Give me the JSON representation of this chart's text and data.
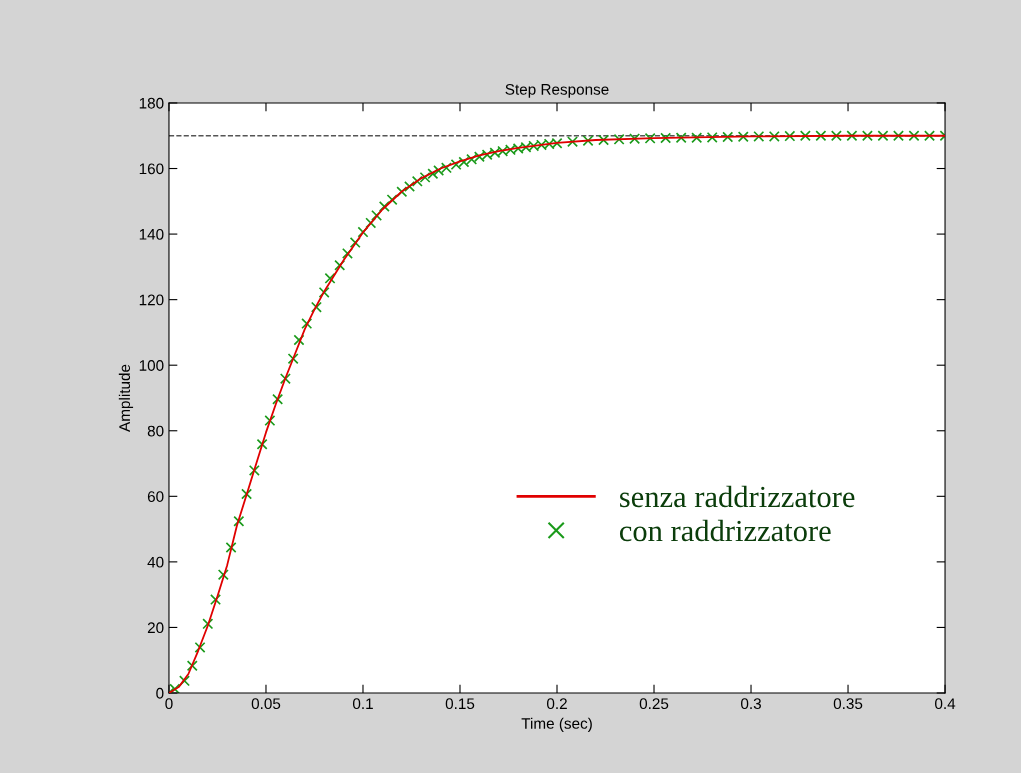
{
  "chart_data": {
    "type": "line",
    "title": "Step Response",
    "xlabel": "Time (sec)",
    "ylabel": "Amplitude",
    "xlim": [
      0,
      0.4
    ],
    "xticks": [
      0,
      0.05,
      0.1,
      0.15,
      0.2,
      0.25,
      0.3,
      0.35,
      0.4
    ],
    "ylim": [
      0,
      180
    ],
    "yticks": [
      0,
      20,
      40,
      60,
      80,
      100,
      120,
      140,
      160,
      180
    ],
    "grid": false,
    "legend": "right",
    "ref_lines": [
      {
        "axis": "y",
        "value": 170,
        "color": "#555555",
        "line_style": "dashed"
      }
    ],
    "series": [
      {
        "name": "senza raddrizzatore",
        "color": "#e00000",
        "marker": "none",
        "line_style": "solid",
        "x": [
          0,
          0.005,
          0.01,
          0.015,
          0.02,
          0.025,
          0.03,
          0.035,
          0.04,
          0.045,
          0.05,
          0.055,
          0.06,
          0.065,
          0.07,
          0.075,
          0.08,
          0.09,
          0.1,
          0.11,
          0.12,
          0.13,
          0.14,
          0.15,
          0.16,
          0.17,
          0.18,
          0.2,
          0.22,
          0.25,
          0.3,
          0.35,
          0.4
        ],
        "values": [
          0,
          1.8,
          5.8,
          12.8,
          20.5,
          29.5,
          39,
          51,
          60.5,
          70,
          79.5,
          88,
          96,
          103.5,
          111,
          117,
          122.5,
          132,
          140.5,
          147.5,
          153,
          157,
          160,
          162.2,
          164,
          165.3,
          166.3,
          167.8,
          168.7,
          169.3,
          169.8,
          170,
          170
        ]
      },
      {
        "name": "con raddrizzatore",
        "type": "scatter",
        "color": "#1a9a1a",
        "marker": "cross",
        "x": [
          0,
          0.003,
          0.008,
          0.012,
          0.016,
          0.02,
          0.024,
          0.028,
          0.032,
          0.036,
          0.04,
          0.044,
          0.048,
          0.052,
          0.056,
          0.06,
          0.064,
          0.067,
          0.071,
          0.076,
          0.08,
          0.083,
          0.088,
          0.092,
          0.096,
          0.1,
          0.104,
          0.107,
          0.111,
          0.115,
          0.12,
          0.124,
          0.128,
          0.132,
          0.136,
          0.139,
          0.143,
          0.148,
          0.152,
          0.156,
          0.16,
          0.164,
          0.168,
          0.172,
          0.176,
          0.18,
          0.184,
          0.188,
          0.192,
          0.196,
          0.2,
          0.208,
          0.216,
          0.224,
          0.232,
          0.24,
          0.248,
          0.256,
          0.264,
          0.272,
          0.28,
          0.288,
          0.296,
          0.304,
          0.312,
          0.32,
          0.328,
          0.336,
          0.344,
          0.352,
          0.36,
          0.368,
          0.376,
          0.384,
          0.392,
          0.4
        ],
        "values": [
          0,
          1.2,
          3.7,
          8.3,
          13.9,
          21.1,
          28.5,
          36.1,
          44.4,
          52.4,
          60.7,
          67.9,
          75.9,
          83.1,
          89.6,
          95.9,
          102,
          107.7,
          112.7,
          117.7,
          122.2,
          126.5,
          130.5,
          134.1,
          137.4,
          140.6,
          143.4,
          145.7,
          148.4,
          150.5,
          152.9,
          154.5,
          156.1,
          157.3,
          158.4,
          159.4,
          160.2,
          161.2,
          162,
          162.8,
          163.6,
          164.2,
          164.8,
          165.3,
          165.7,
          166.1,
          166.5,
          166.9,
          167.2,
          167.5,
          167.7,
          168.2,
          168.5,
          168.7,
          168.9,
          169.1,
          169.2,
          169.3,
          169.4,
          169.4,
          169.5,
          169.6,
          169.7,
          169.8,
          169.8,
          169.9,
          170,
          170,
          170,
          170,
          170,
          170,
          170,
          170,
          170,
          170
        ]
      }
    ]
  }
}
